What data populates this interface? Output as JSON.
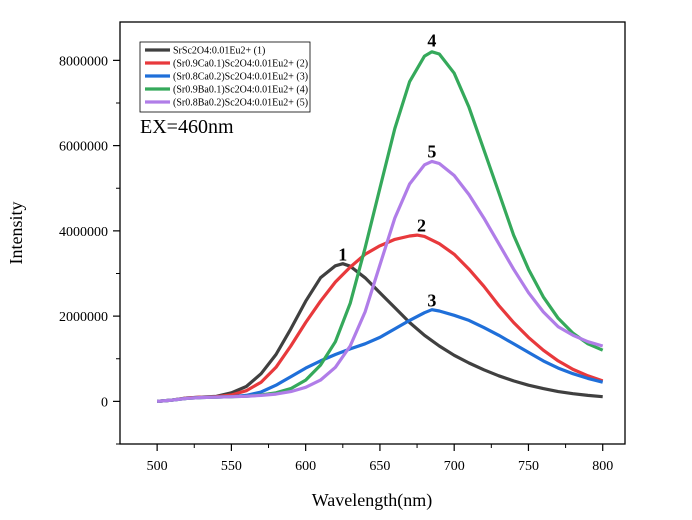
{
  "chart_data": {
    "type": "line",
    "xlabel": "Wavelength(nm)",
    "ylabel": "Intensity",
    "xlim": [
      475,
      815
    ],
    "ylim": [
      -1000000,
      8900000
    ],
    "xticks": [
      500,
      550,
      600,
      650,
      700,
      750,
      800
    ],
    "yticks": [
      0,
      2000000,
      4000000,
      6000000,
      8000000
    ],
    "ytick_labels": [
      "0",
      "2000000",
      "4000000",
      "6000000",
      "8000000"
    ],
    "grid": false,
    "legend_position": "top-left",
    "annotation": "EX=460nm",
    "peak_labels": [
      {
        "text": "1",
        "x": 625,
        "y": 3300000
      },
      {
        "text": "2",
        "x": 678,
        "y": 3980000
      },
      {
        "text": "3",
        "x": 685,
        "y": 2230000
      },
      {
        "text": "4",
        "x": 685,
        "y": 8320000
      },
      {
        "text": "5",
        "x": 685,
        "y": 5720000
      }
    ],
    "series": [
      {
        "name": "SrSc2O4:0.01Eu2+ (1)",
        "color": "#404040",
        "x": [
          500,
          510,
          520,
          530,
          540,
          550,
          560,
          570,
          580,
          590,
          600,
          610,
          620,
          625,
          630,
          640,
          650,
          660,
          670,
          680,
          690,
          700,
          710,
          720,
          730,
          740,
          750,
          760,
          770,
          780,
          790,
          800
        ],
        "y": [
          0,
          30000,
          80000,
          100000,
          120000,
          200000,
          350000,
          650000,
          1100000,
          1700000,
          2350000,
          2900000,
          3180000,
          3230000,
          3170000,
          2900000,
          2550000,
          2200000,
          1850000,
          1550000,
          1300000,
          1080000,
          900000,
          740000,
          600000,
          480000,
          380000,
          300000,
          230000,
          180000,
          140000,
          110000
        ]
      },
      {
        "name": "(Sr0.9Ca0.1)Sc2O4:0.01Eu2+ (2)",
        "color": "#e8393c",
        "x": [
          500,
          510,
          520,
          530,
          540,
          550,
          560,
          570,
          580,
          590,
          600,
          610,
          620,
          630,
          640,
          650,
          660,
          670,
          675,
          680,
          690,
          700,
          710,
          720,
          730,
          740,
          750,
          760,
          770,
          780,
          790,
          800
        ],
        "y": [
          0,
          30000,
          80000,
          100000,
          110000,
          150000,
          250000,
          450000,
          800000,
          1300000,
          1850000,
          2350000,
          2800000,
          3150000,
          3450000,
          3650000,
          3800000,
          3880000,
          3900000,
          3870000,
          3700000,
          3450000,
          3100000,
          2700000,
          2250000,
          1850000,
          1500000,
          1200000,
          950000,
          750000,
          600000,
          480000
        ]
      },
      {
        "name": "(Sr0.8Ca0.2)Sc2O4:0.01Eu2+ (3)",
        "color": "#1f6fd9",
        "x": [
          500,
          510,
          520,
          530,
          540,
          550,
          560,
          570,
          580,
          590,
          600,
          610,
          620,
          630,
          640,
          650,
          660,
          670,
          680,
          685,
          690,
          700,
          710,
          720,
          730,
          740,
          750,
          760,
          770,
          780,
          790,
          800
        ],
        "y": [
          0,
          30000,
          70000,
          90000,
          100000,
          110000,
          140000,
          220000,
          380000,
          580000,
          780000,
          950000,
          1100000,
          1230000,
          1350000,
          1500000,
          1700000,
          1900000,
          2080000,
          2150000,
          2120000,
          2020000,
          1900000,
          1730000,
          1550000,
          1350000,
          1150000,
          950000,
          780000,
          650000,
          540000,
          450000
        ]
      },
      {
        "name": "(Sr0.9Ba0.1)Sc2O4:0.01Eu2+ (4)",
        "color": "#35a95b",
        "x": [
          500,
          510,
          520,
          530,
          540,
          550,
          560,
          570,
          580,
          590,
          600,
          610,
          620,
          630,
          640,
          650,
          660,
          670,
          680,
          685,
          690,
          700,
          710,
          720,
          730,
          740,
          750,
          760,
          770,
          780,
          790,
          800
        ],
        "y": [
          0,
          30000,
          70000,
          90000,
          100000,
          110000,
          120000,
          150000,
          200000,
          300000,
          500000,
          850000,
          1400000,
          2300000,
          3600000,
          5000000,
          6400000,
          7500000,
          8100000,
          8200000,
          8150000,
          7700000,
          6900000,
          5900000,
          4900000,
          3900000,
          3100000,
          2450000,
          1950000,
          1600000,
          1350000,
          1200000
        ]
      },
      {
        "name": "(Sr0.8Ba0.2)Sc2O4:0.01Eu2+ (5)",
        "color": "#b07de8",
        "x": [
          500,
          510,
          520,
          530,
          540,
          550,
          560,
          570,
          580,
          590,
          600,
          610,
          620,
          630,
          640,
          650,
          660,
          670,
          680,
          685,
          690,
          700,
          710,
          720,
          730,
          740,
          750,
          760,
          770,
          780,
          790,
          800
        ],
        "y": [
          0,
          30000,
          70000,
          90000,
          100000,
          110000,
          120000,
          140000,
          170000,
          230000,
          330000,
          500000,
          800000,
          1300000,
          2100000,
          3200000,
          4300000,
          5100000,
          5550000,
          5630000,
          5580000,
          5300000,
          4850000,
          4300000,
          3700000,
          3100000,
          2550000,
          2100000,
          1750000,
          1550000,
          1400000,
          1300000
        ]
      }
    ]
  }
}
